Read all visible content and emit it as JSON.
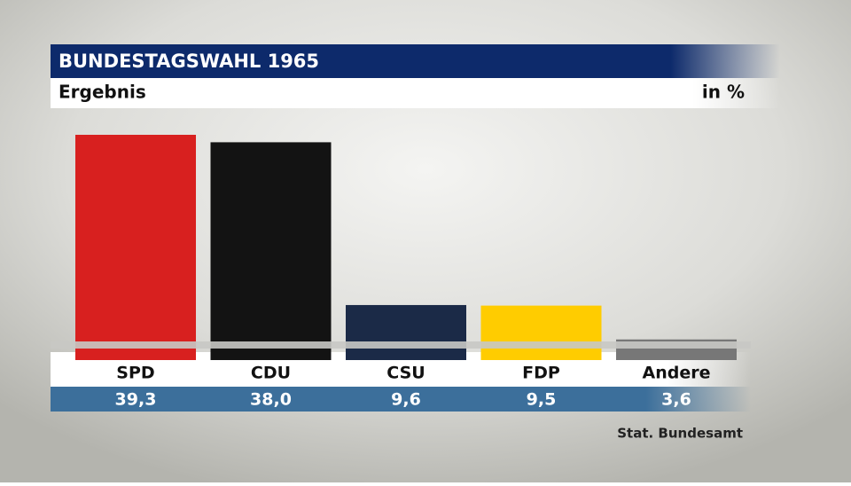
{
  "chart_data": {
    "type": "bar",
    "title": "BUNDESTAGSWAHL 1965",
    "subtitle": "Ergebnis",
    "unit_label": "in %",
    "categories": [
      "SPD",
      "CDU",
      "CSU",
      "FDP",
      "Andere"
    ],
    "values": [
      39.3,
      38.0,
      9.6,
      9.5,
      3.6
    ],
    "value_labels": [
      "39,3",
      "38,0",
      "9,6",
      "9,5",
      "3,6"
    ],
    "colors": [
      "#d8201f",
      "#131313",
      "#1b2a47",
      "#ffcc00",
      "#777777"
    ],
    "source": "Stat. Bundesamt"
  }
}
